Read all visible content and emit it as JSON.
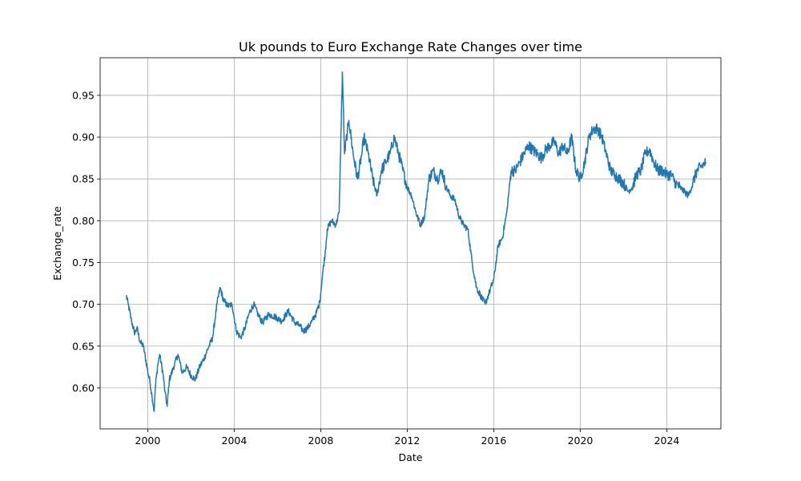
{
  "chart_data": {
    "type": "line",
    "title": "Uk pounds to Euro Exchange Rate Changes over time",
    "xlabel": "Date",
    "ylabel": "Exchange_rate",
    "x_ticks": [
      "2000",
      "2004",
      "2008",
      "2012",
      "2016",
      "2020",
      "2024"
    ],
    "y_ticks": [
      "0.60",
      "0.65",
      "0.70",
      "0.75",
      "0.80",
      "0.85",
      "0.90",
      "0.95"
    ],
    "xlim": [
      1997.8,
      2026.5
    ],
    "ylim": [
      0.551,
      0.995
    ],
    "grid": true,
    "series": [
      {
        "color": "#1f77b4",
        "x": [
          1999.0,
          1999.1,
          1999.25,
          1999.4,
          1999.5,
          1999.65,
          1999.8,
          2000.0,
          2000.1,
          2000.2,
          2000.3,
          2000.35,
          2000.45,
          2000.55,
          2000.7,
          2000.8,
          2000.9,
          2001.0,
          2001.2,
          2001.4,
          2001.6,
          2001.8,
          2002.0,
          2002.2,
          2002.4,
          2002.6,
          2002.8,
          2003.0,
          2003.2,
          2003.35,
          2003.5,
          2003.7,
          2003.9,
          2004.1,
          2004.3,
          2004.5,
          2004.7,
          2004.9,
          2005.1,
          2005.3,
          2005.6,
          2005.9,
          2006.2,
          2006.5,
          2006.8,
          2007.0,
          2007.2,
          2007.4,
          2007.6,
          2007.8,
          2007.95,
          2008.1,
          2008.2,
          2008.3,
          2008.5,
          2008.7,
          2008.85,
          2008.95,
          2009.0,
          2009.1,
          2009.3,
          2009.5,
          2009.7,
          2009.9,
          2010.0,
          2010.2,
          2010.4,
          2010.6,
          2010.8,
          2011.0,
          2011.2,
          2011.4,
          2011.6,
          2011.8,
          2012.0,
          2012.2,
          2012.4,
          2012.6,
          2012.8,
          2013.0,
          2013.2,
          2013.4,
          2013.6,
          2013.8,
          2014.0,
          2014.2,
          2014.4,
          2014.6,
          2014.8,
          2015.0,
          2015.2,
          2015.4,
          2015.6,
          2015.8,
          2016.0,
          2016.2,
          2016.4,
          2016.6,
          2016.8,
          2017.0,
          2017.2,
          2017.4,
          2017.6,
          2017.8,
          2018.0,
          2018.2,
          2018.4,
          2018.6,
          2018.8,
          2019.0,
          2019.2,
          2019.4,
          2019.6,
          2019.8,
          2020.0,
          2020.2,
          2020.4,
          2020.6,
          2020.8,
          2021.0,
          2021.2,
          2021.4,
          2021.6,
          2021.8,
          2022.0,
          2022.2,
          2022.4,
          2022.6,
          2022.8,
          2023.0,
          2023.2,
          2023.4,
          2023.6,
          2023.8,
          2024.0,
          2024.2,
          2024.4,
          2024.6,
          2024.8,
          2025.0,
          2025.2,
          2025.4,
          2025.6,
          2025.8
        ],
        "y": [
          0.711,
          0.7,
          0.68,
          0.665,
          0.672,
          0.655,
          0.65,
          0.62,
          0.608,
          0.59,
          0.572,
          0.6,
          0.625,
          0.64,
          0.618,
          0.595,
          0.578,
          0.61,
          0.625,
          0.64,
          0.618,
          0.625,
          0.615,
          0.61,
          0.625,
          0.635,
          0.648,
          0.66,
          0.7,
          0.72,
          0.705,
          0.698,
          0.7,
          0.668,
          0.66,
          0.672,
          0.69,
          0.7,
          0.688,
          0.678,
          0.688,
          0.685,
          0.68,
          0.692,
          0.678,
          0.675,
          0.668,
          0.672,
          0.68,
          0.69,
          0.702,
          0.74,
          0.76,
          0.79,
          0.8,
          0.795,
          0.81,
          0.92,
          0.978,
          0.88,
          0.92,
          0.88,
          0.85,
          0.88,
          0.9,
          0.88,
          0.85,
          0.83,
          0.86,
          0.87,
          0.88,
          0.9,
          0.88,
          0.86,
          0.84,
          0.83,
          0.81,
          0.795,
          0.805,
          0.85,
          0.86,
          0.85,
          0.86,
          0.84,
          0.83,
          0.825,
          0.805,
          0.795,
          0.79,
          0.75,
          0.72,
          0.71,
          0.7,
          0.715,
          0.73,
          0.77,
          0.78,
          0.81,
          0.86,
          0.86,
          0.87,
          0.88,
          0.89,
          0.885,
          0.88,
          0.875,
          0.885,
          0.89,
          0.895,
          0.88,
          0.89,
          0.88,
          0.9,
          0.86,
          0.85,
          0.87,
          0.9,
          0.91,
          0.91,
          0.9,
          0.88,
          0.86,
          0.855,
          0.85,
          0.845,
          0.835,
          0.84,
          0.855,
          0.86,
          0.88,
          0.885,
          0.87,
          0.86,
          0.86,
          0.855,
          0.855,
          0.845,
          0.84,
          0.835,
          0.83,
          0.845,
          0.86,
          0.865,
          0.87
        ]
      }
    ]
  }
}
